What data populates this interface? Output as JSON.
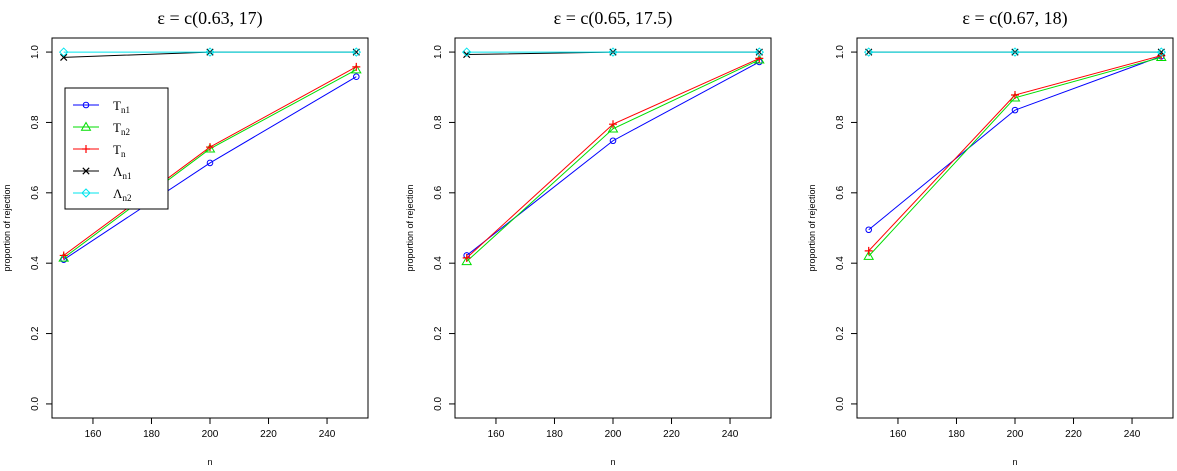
{
  "chart_data": [
    {
      "type": "line",
      "title": "ε = c(0.63, 17)",
      "xlabel": "n",
      "ylabel": "proportion of rejection",
      "x": [
        150,
        200,
        250
      ],
      "xticks": [
        160,
        180,
        200,
        220,
        240
      ],
      "xtick_labels": [
        "160",
        "180",
        "200",
        "220",
        "240"
      ],
      "xlim": [
        146,
        254
      ],
      "yticks": [
        0.0,
        0.2,
        0.4,
        0.6,
        0.8,
        1.0
      ],
      "ytick_labels": [
        "0.0",
        "0.2",
        "0.4",
        "0.6",
        "0.8",
        "1.0"
      ],
      "ylim": [
        -0.04,
        1.04
      ],
      "grid": false,
      "legend": "top-left",
      "series": [
        {
          "key": "Tn1",
          "values": [
            0.41,
            0.685,
            0.93
          ],
          "color": "#0000ff",
          "marker": "circle"
        },
        {
          "key": "Tn2",
          "values": [
            0.415,
            0.725,
            0.95
          ],
          "color": "#00dd00",
          "marker": "triangle"
        },
        {
          "key": "Tn",
          "values": [
            0.422,
            0.73,
            0.958
          ],
          "color": "#ff0000",
          "marker": "plus"
        },
        {
          "key": "Ln1",
          "values": [
            0.985,
            1.0,
            1.0
          ],
          "color": "#000000",
          "marker": "cross"
        },
        {
          "key": "Ln2",
          "values": [
            1.0,
            1.0,
            1.0
          ],
          "color": "#00e5ee",
          "marker": "diamond"
        }
      ]
    },
    {
      "type": "line",
      "title": "ε = c(0.65, 17.5)",
      "xlabel": "n",
      "ylabel": "proportion of rejection",
      "x": [
        150,
        200,
        250
      ],
      "xticks": [
        160,
        180,
        200,
        220,
        240
      ],
      "xtick_labels": [
        "160",
        "180",
        "200",
        "220",
        "240"
      ],
      "xlim": [
        146,
        254
      ],
      "yticks": [
        0.0,
        0.2,
        0.4,
        0.6,
        0.8,
        1.0
      ],
      "ytick_labels": [
        "0.0",
        "0.2",
        "0.4",
        "0.6",
        "0.8",
        "1.0"
      ],
      "ylim": [
        -0.04,
        1.04
      ],
      "grid": false,
      "series": [
        {
          "key": "Tn1",
          "values": [
            0.422,
            0.748,
            0.972
          ],
          "color": "#0000ff",
          "marker": "circle"
        },
        {
          "key": "Tn2",
          "values": [
            0.405,
            0.782,
            0.978
          ],
          "color": "#00dd00",
          "marker": "triangle"
        },
        {
          "key": "Tn",
          "values": [
            0.415,
            0.795,
            0.982
          ],
          "color": "#ff0000",
          "marker": "plus"
        },
        {
          "key": "Ln1",
          "values": [
            0.993,
            1.0,
            1.0
          ],
          "color": "#000000",
          "marker": "cross"
        },
        {
          "key": "Ln2",
          "values": [
            1.0,
            1.0,
            1.0
          ],
          "color": "#00e5ee",
          "marker": "diamond"
        }
      ]
    },
    {
      "type": "line",
      "title": "ε = c(0.67, 18)",
      "xlabel": "n",
      "ylabel": "proportion of rejection",
      "x": [
        150,
        200,
        250
      ],
      "xticks": [
        160,
        180,
        200,
        220,
        240
      ],
      "xtick_labels": [
        "160",
        "180",
        "200",
        "220",
        "240"
      ],
      "xlim": [
        146,
        254
      ],
      "yticks": [
        0.0,
        0.2,
        0.4,
        0.6,
        0.8,
        1.0
      ],
      "ytick_labels": [
        "0.0",
        "0.2",
        "0.4",
        "0.6",
        "0.8",
        "1.0"
      ],
      "ylim": [
        -0.04,
        1.04
      ],
      "grid": false,
      "series": [
        {
          "key": "Tn1",
          "values": [
            0.495,
            0.835,
            0.988
          ],
          "color": "#0000ff",
          "marker": "circle"
        },
        {
          "key": "Tn2",
          "values": [
            0.42,
            0.87,
            0.985
          ],
          "color": "#00dd00",
          "marker": "triangle"
        },
        {
          "key": "Tn",
          "values": [
            0.435,
            0.878,
            0.99
          ],
          "color": "#ff0000",
          "marker": "plus"
        },
        {
          "key": "Ln1",
          "values": [
            1.0,
            1.0,
            1.0
          ],
          "color": "#000000",
          "marker": "cross"
        },
        {
          "key": "Ln2",
          "values": [
            1.0,
            1.0,
            1.0
          ],
          "color": "#00e5ee",
          "marker": "diamond"
        }
      ]
    }
  ],
  "legend": {
    "entries": [
      {
        "key": "Tn1",
        "base": "T",
        "sub": "n1",
        "color": "#0000ff",
        "marker": "circle"
      },
      {
        "key": "Tn2",
        "base": "T",
        "sub": "n2",
        "color": "#00dd00",
        "marker": "triangle"
      },
      {
        "key": "Tn",
        "base": "T",
        "sub": "n",
        "color": "#ff0000",
        "marker": "plus"
      },
      {
        "key": "Ln1",
        "base": "Λ",
        "sub": "n1",
        "color": "#000000",
        "marker": "cross"
      },
      {
        "key": "Ln2",
        "base": "Λ",
        "sub": "n2",
        "color": "#00e5ee",
        "marker": "diamond"
      }
    ]
  }
}
